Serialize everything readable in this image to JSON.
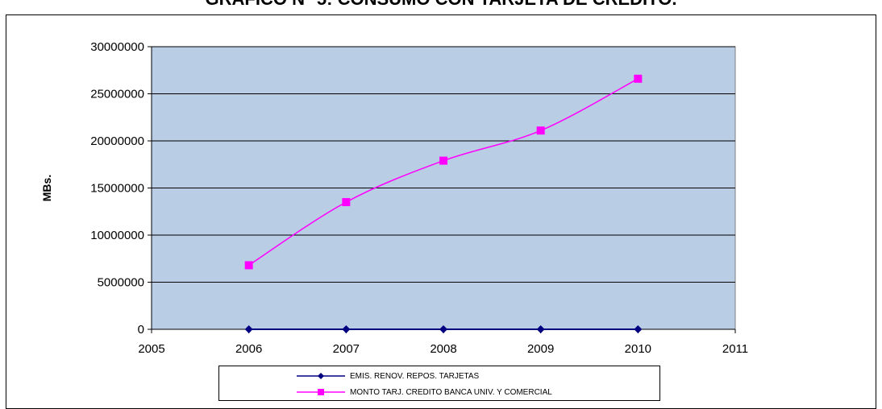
{
  "chart_data": {
    "type": "line",
    "title": "GRAFICO N° 5: CONSUMO CON TARJETA DE CREDITO.",
    "xlabel": "",
    "ylabel": "MBs.",
    "xlim": [
      2005,
      2011
    ],
    "ylim": [
      0,
      30000000
    ],
    "x_ticks": [
      "2005",
      "2006",
      "2007",
      "2008",
      "2009",
      "2010",
      "2011"
    ],
    "y_ticks": [
      "0",
      "5000000",
      "10000000",
      "15000000",
      "20000000",
      "25000000",
      "30000000"
    ],
    "grid": "horizontal",
    "plot_background": "#b9cde5",
    "legend_position": "bottom",
    "series": [
      {
        "name": "EMIS. RENOV. REPOS. TARJETAS",
        "color": "#000080",
        "marker": "diamond",
        "x": [
          2006,
          2007,
          2008,
          2009,
          2010
        ],
        "values": [
          0,
          0,
          0,
          0,
          0
        ]
      },
      {
        "name": "MONTO TARJ. CREDITO BANCA UNIV. Y COMERCIAL",
        "color": "#ff00ff",
        "marker": "square",
        "x": [
          2006,
          2007,
          2008,
          2009,
          2010
        ],
        "values": [
          6800000,
          13500000,
          17900000,
          21100000,
          26600000
        ]
      }
    ]
  }
}
